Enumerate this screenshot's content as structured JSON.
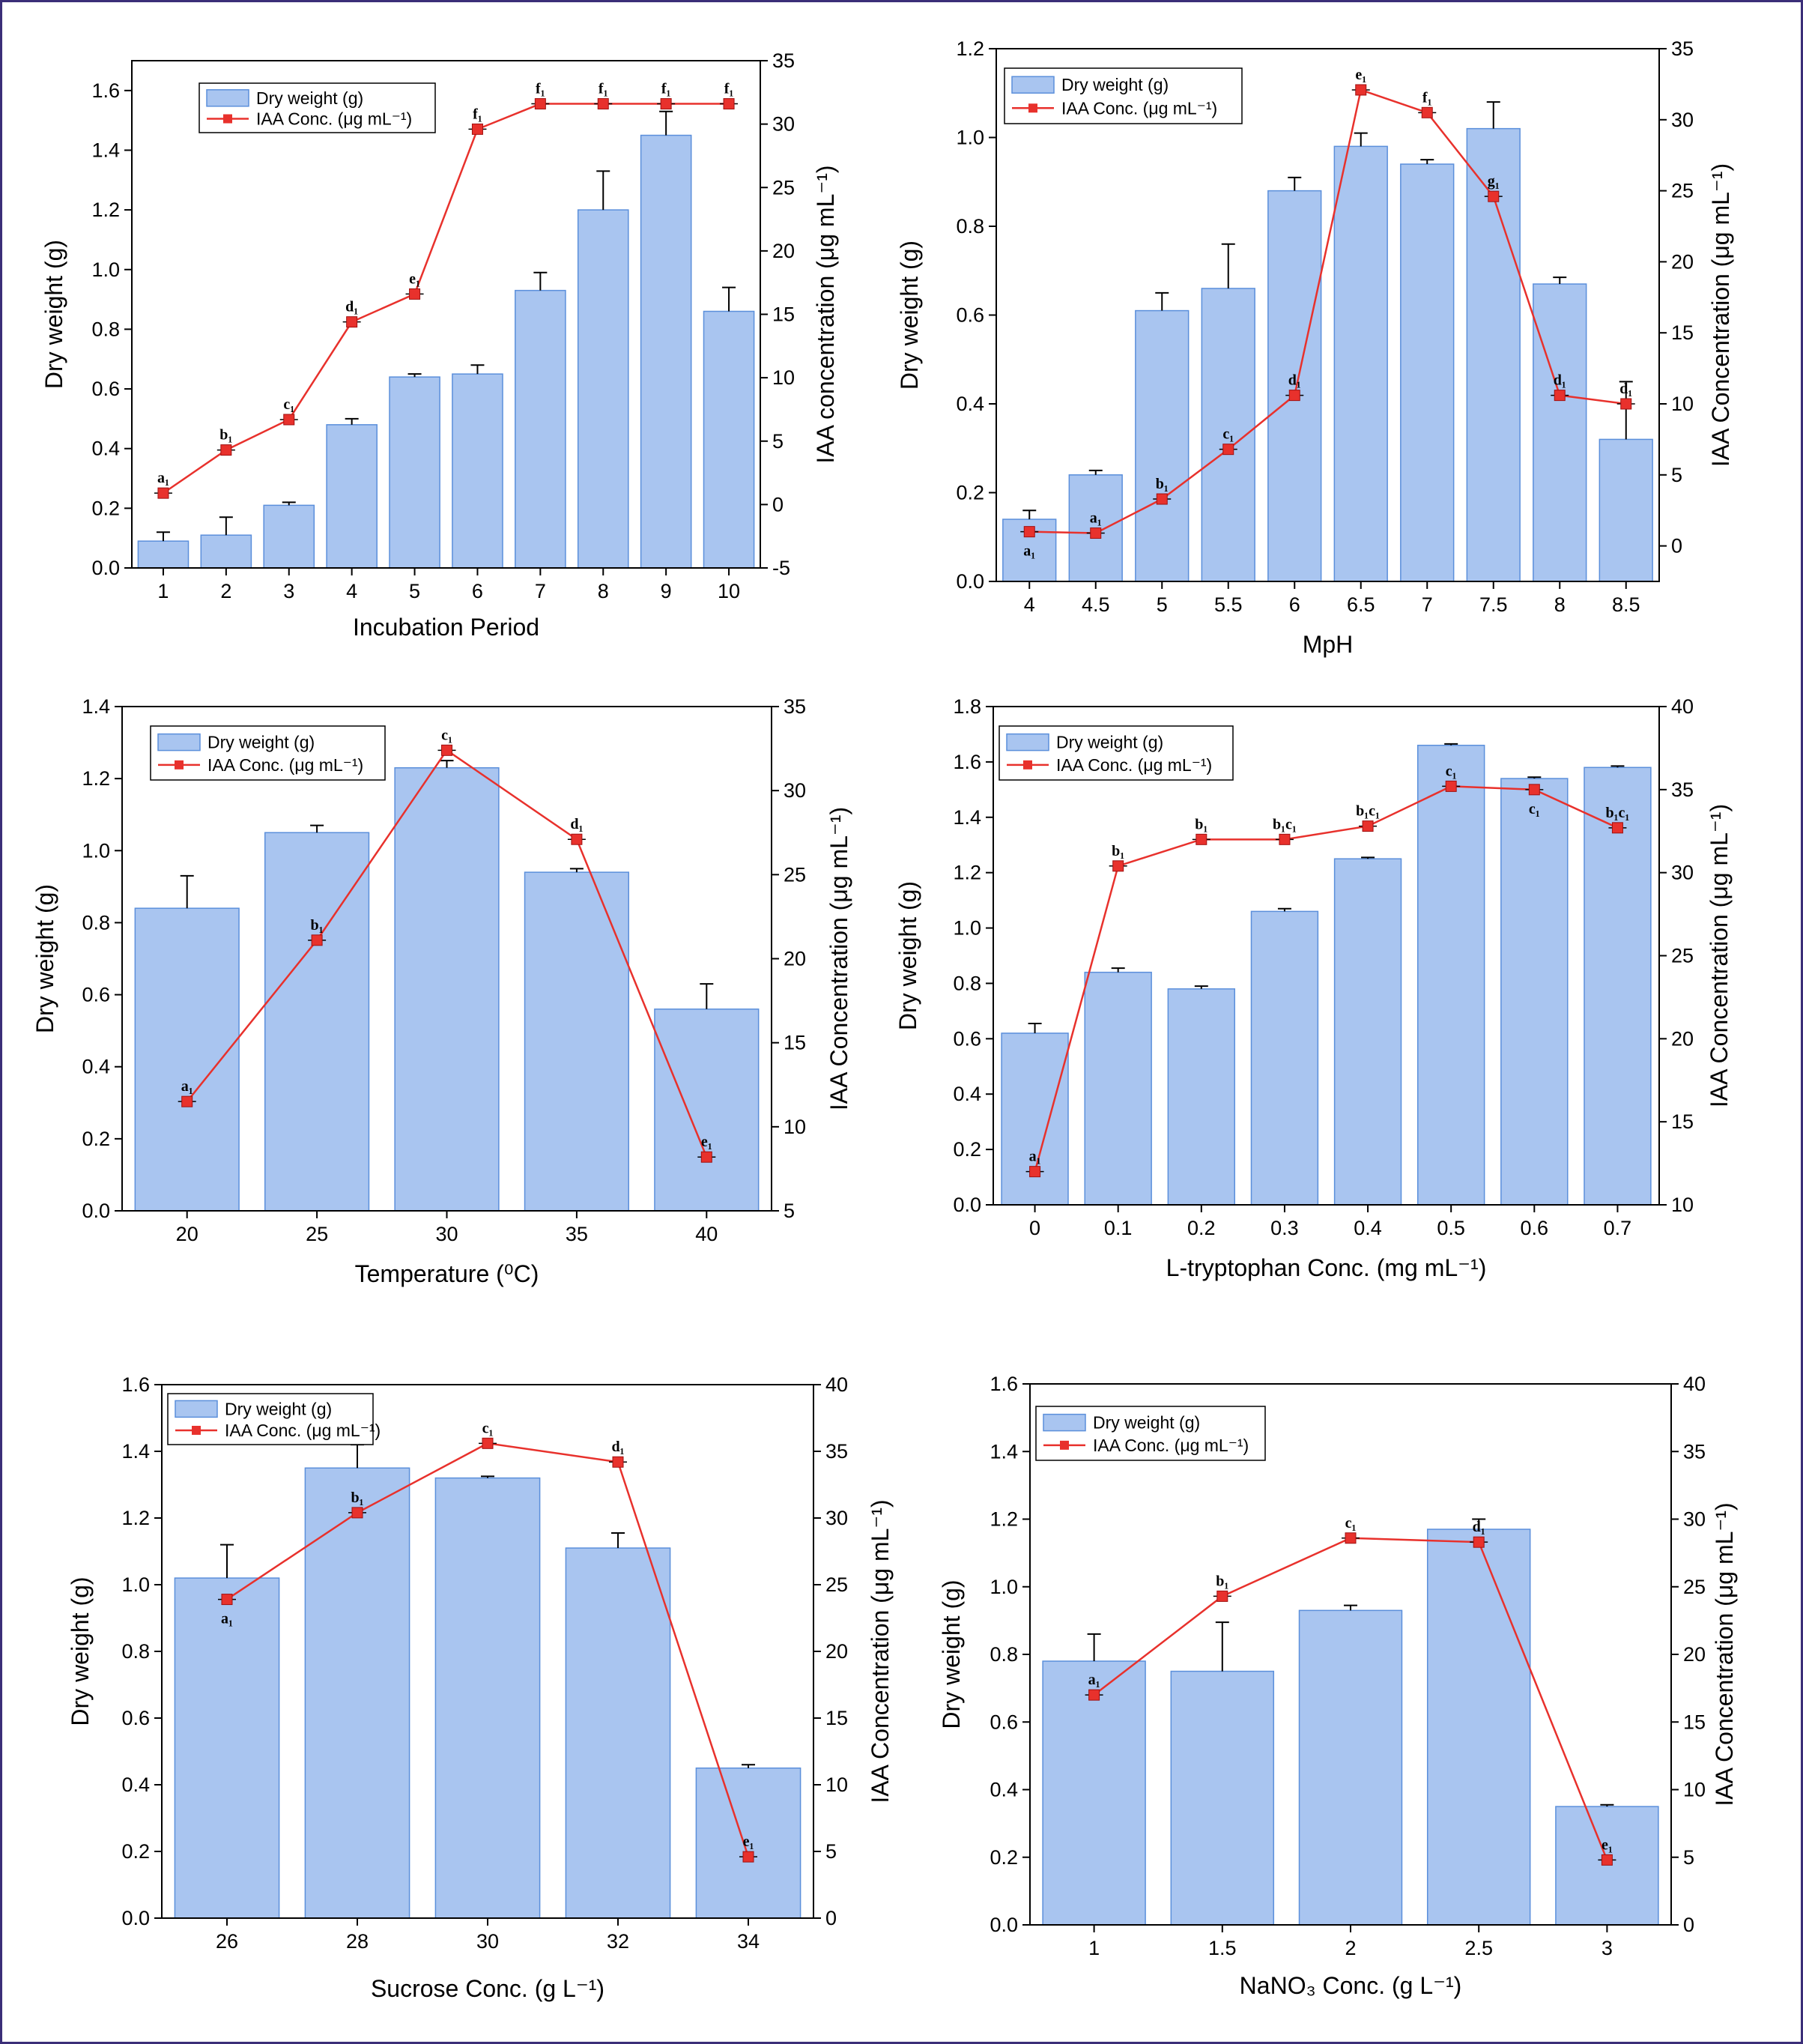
{
  "colors": {
    "bar_fill": "#a9c5f0",
    "bar_stroke": "#5b8fdb",
    "line": "#e8312c",
    "marker": "#e8312c",
    "frame": "#3b2e78"
  },
  "legend": {
    "bar_label": "Dry weight (g)",
    "line_label": "IAA Conc. (μg mL⁻¹)"
  },
  "chart_data": [
    {
      "type": "bar+line",
      "xlabel": "Incubation Period",
      "ylabel": "Dry weight (g)",
      "y2label": "IAA concentration (μg mL⁻¹)",
      "categories": [
        "1",
        "2",
        "3",
        "4",
        "5",
        "6",
        "7",
        "8",
        "9",
        "10"
      ],
      "ylim": [
        0,
        1.7
      ],
      "yticks": [
        0,
        0.2,
        0.4,
        0.6,
        0.8,
        1.0,
        1.2,
        1.4,
        1.6
      ],
      "y2lim": [
        -5,
        35
      ],
      "y2ticks": [
        -5,
        0,
        5,
        10,
        15,
        20,
        25,
        30,
        35
      ],
      "series": [
        {
          "name": "Dry weight (g)",
          "kind": "bar",
          "values": [
            0.09,
            0.11,
            0.21,
            0.48,
            0.64,
            0.65,
            0.93,
            1.2,
            1.45,
            0.86
          ],
          "errors": [
            0.03,
            0.06,
            0.01,
            0.02,
            0.01,
            0.03,
            0.06,
            0.13,
            0.08,
            0.08
          ]
        },
        {
          "name": "IAA Conc. (μg mL⁻¹)",
          "kind": "line",
          "values": [
            0.9,
            4.3,
            6.7,
            14.4,
            16.6,
            29.6,
            31.6,
            31.6,
            31.6,
            31.6
          ],
          "labels": [
            "a₁",
            "b₁",
            "c₁",
            "d₁",
            "e₁",
            "f₁",
            "f₁",
            "f₁",
            "f₁",
            "f₁"
          ]
        }
      ]
    },
    {
      "type": "bar+line",
      "xlabel": "MpH",
      "ylabel": "Dry weight (g)",
      "y2label": "IAA Concentration (μg mL⁻¹)",
      "categories": [
        "4",
        "4.5",
        "5",
        "5.5",
        "6",
        "6.5",
        "7",
        "7.5",
        "8",
        "8.5"
      ],
      "ylim": [
        0,
        1.2
      ],
      "yticks": [
        0,
        0.2,
        0.4,
        0.6,
        0.8,
        1.0,
        1.2
      ],
      "y2lim": [
        -2.5,
        35
      ],
      "y2ticks": [
        0,
        5,
        10,
        15,
        20,
        25,
        30,
        35
      ],
      "series": [
        {
          "name": "Dry weight (g)",
          "kind": "bar",
          "values": [
            0.14,
            0.24,
            0.61,
            0.66,
            0.88,
            0.98,
            0.94,
            1.02,
            0.67,
            0.32
          ],
          "errors": [
            0.02,
            0.01,
            0.04,
            0.1,
            0.03,
            0.03,
            0.01,
            0.06,
            0.015,
            0.13
          ]
        },
        {
          "name": "IAA Conc. (μg mL⁻¹)",
          "kind": "line",
          "values": [
            1.0,
            0.9,
            3.3,
            6.8,
            10.6,
            32.1,
            30.5,
            24.6,
            10.6,
            10.0
          ],
          "labels": [
            "a₁",
            "a₁",
            "b₁",
            "c₁",
            "d₁",
            "e₁",
            "f₁",
            "g₁",
            "d₁",
            "d₁"
          ]
        }
      ]
    },
    {
      "type": "bar+line",
      "xlabel": "Temperature (⁰C)",
      "ylabel": "Dry weight (g)",
      "y2label": "IAA Concentration (μg mL⁻¹)",
      "categories": [
        "20",
        "25",
        "30",
        "35",
        "40"
      ],
      "ylim": [
        0,
        1.4
      ],
      "yticks": [
        0,
        0.2,
        0.4,
        0.6,
        0.8,
        1.0,
        1.2,
        1.4
      ],
      "y2lim": [
        5,
        35
      ],
      "y2ticks": [
        5,
        10,
        15,
        20,
        25,
        30,
        35
      ],
      "series": [
        {
          "name": "Dry weight (g)",
          "kind": "bar",
          "values": [
            0.84,
            1.05,
            1.23,
            0.94,
            0.56
          ],
          "errors": [
            0.09,
            0.02,
            0.02,
            0.01,
            0.07
          ]
        },
        {
          "name": "IAA Conc. (μg mL⁻¹)",
          "kind": "line",
          "values": [
            11.5,
            21.1,
            32.4,
            27.1,
            8.2
          ],
          "labels": [
            "a₁",
            "b₁",
            "c₁",
            "d₁",
            "e₁"
          ]
        }
      ]
    },
    {
      "type": "bar+line",
      "xlabel": "L-tryptophan Conc. (mg mL⁻¹)",
      "ylabel": "Dry weight (g)",
      "y2label": "IAA Concentration (μg mL⁻¹)",
      "categories": [
        "0",
        "0.1",
        "0.2",
        "0.3",
        "0.4",
        "0.5",
        "0.6",
        "0.7"
      ],
      "ylim": [
        0,
        1.8
      ],
      "yticks": [
        0,
        0.2,
        0.4,
        0.6,
        0.8,
        1.0,
        1.2,
        1.4,
        1.6,
        1.8
      ],
      "y2lim": [
        10,
        40
      ],
      "y2ticks": [
        10,
        15,
        20,
        25,
        30,
        35,
        40
      ],
      "series": [
        {
          "name": "Dry weight (g)",
          "kind": "bar",
          "values": [
            0.62,
            0.84,
            0.78,
            1.06,
            1.25,
            1.66,
            1.54,
            1.58
          ],
          "errors": [
            0.035,
            0.015,
            0.01,
            0.01,
            0.005,
            0.005,
            0.005,
            0.005
          ]
        },
        {
          "name": "IAA Conc. (μg mL⁻¹)",
          "kind": "line",
          "values": [
            12.0,
            30.4,
            32.0,
            32.0,
            32.8,
            35.2,
            35.0,
            32.7
          ],
          "labels": [
            "a₁",
            "b₁",
            "b₁",
            "b₁c₁",
            "b₁c₁",
            "c₁",
            "c₁",
            "b₁c₁"
          ]
        }
      ]
    },
    {
      "type": "bar+line",
      "xlabel": "Sucrose Conc. (g L⁻¹)",
      "ylabel": "Dry weight (g)",
      "y2label": "IAA Concentration (μg mL⁻¹)",
      "categories": [
        "26",
        "28",
        "30",
        "32",
        "34"
      ],
      "ylim": [
        0,
        1.6
      ],
      "yticks": [
        0,
        0.2,
        0.4,
        0.6,
        0.8,
        1.0,
        1.2,
        1.4,
        1.6
      ],
      "y2lim": [
        0,
        40
      ],
      "y2ticks": [
        0,
        5,
        10,
        15,
        20,
        25,
        30,
        35,
        40
      ],
      "series": [
        {
          "name": "Dry weight (g)",
          "kind": "bar",
          "values": [
            1.02,
            1.35,
            1.32,
            1.11,
            0.45
          ],
          "errors": [
            0.1,
            0.07,
            0.005,
            0.045,
            0.01
          ]
        },
        {
          "name": "IAA Conc. (μg mL⁻¹)",
          "kind": "line",
          "values": [
            23.9,
            30.4,
            35.6,
            34.2,
            4.6
          ],
          "labels": [
            "a₁",
            "b₁",
            "c₁",
            "d₁",
            "e₁"
          ]
        }
      ]
    },
    {
      "type": "bar+line",
      "xlabel": "NaNO₃ Conc. (g L⁻¹)",
      "ylabel": "Dry weight (g)",
      "y2label": "IAA Concentration (μg mL⁻¹)",
      "categories": [
        "1",
        "1.5",
        "2",
        "2.5",
        "3"
      ],
      "ylim": [
        0,
        1.6
      ],
      "yticks": [
        0,
        0.2,
        0.4,
        0.6,
        0.8,
        1.0,
        1.2,
        1.4,
        1.6
      ],
      "y2lim": [
        0,
        40
      ],
      "y2ticks": [
        0,
        5,
        10,
        15,
        20,
        25,
        30,
        35,
        40
      ],
      "series": [
        {
          "name": "Dry weight (g)",
          "kind": "bar",
          "values": [
            0.78,
            0.75,
            0.93,
            1.17,
            0.35
          ],
          "errors": [
            0.08,
            0.145,
            0.015,
            0.03,
            0.005
          ]
        },
        {
          "name": "IAA Conc. (μg mL⁻¹)",
          "kind": "line",
          "values": [
            17.0,
            24.3,
            28.6,
            28.3,
            4.8
          ],
          "labels": [
            "a₁",
            "b₁",
            "c₁",
            "d₁",
            "e₁"
          ]
        }
      ]
    }
  ]
}
